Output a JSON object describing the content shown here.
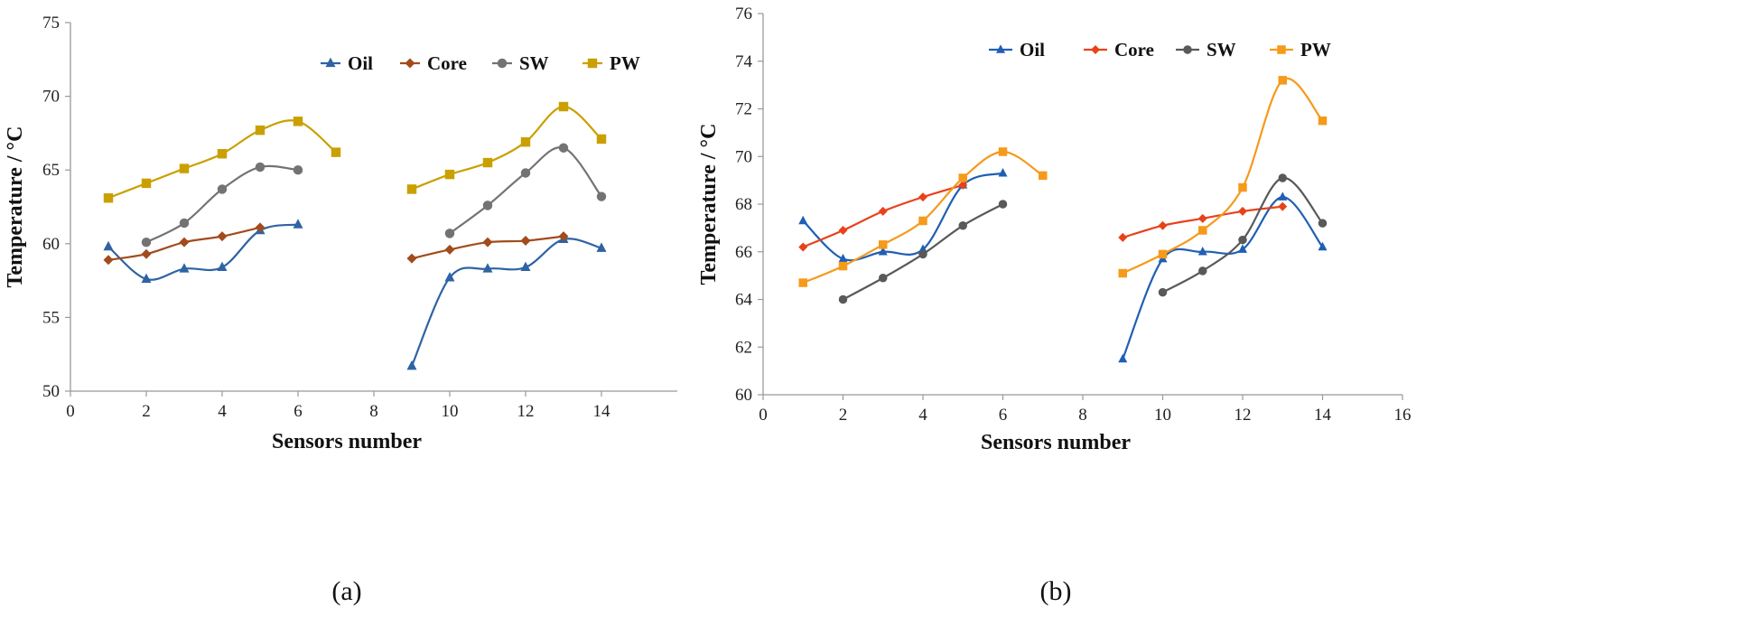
{
  "chart_data": [
    {
      "type": "line",
      "panel_label": "(a)",
      "xlabel": "Sensors number",
      "ylabel": "Temperature / °C",
      "xlim": [
        0,
        16
      ],
      "ylim": [
        50,
        75
      ],
      "xticks": [
        0,
        2,
        4,
        6,
        8,
        10,
        12,
        14
      ],
      "yticks": [
        50,
        55,
        60,
        65,
        70,
        75
      ],
      "grid": false,
      "legend_position": "top-right",
      "series": [
        {
          "name": "Oil",
          "color": "#2e63a4",
          "marker": "triangle",
          "segments": [
            [
              [
                1,
                59.8
              ],
              [
                2,
                57.6
              ],
              [
                3,
                58.3
              ],
              [
                4,
                58.4
              ],
              [
                5,
                60.9
              ],
              [
                6,
                61.3
              ]
            ],
            [
              [
                9,
                51.7
              ],
              [
                10,
                57.7
              ],
              [
                11,
                58.3
              ],
              [
                12,
                58.4
              ],
              [
                13,
                60.3
              ],
              [
                14,
                59.7
              ]
            ]
          ]
        },
        {
          "name": "Core",
          "color": "#a24b1c",
          "marker": "diamond",
          "segments": [
            [
              [
                1,
                58.9
              ],
              [
                2,
                59.3
              ],
              [
                3,
                60.1
              ],
              [
                4,
                60.5
              ],
              [
                5,
                61.1
              ]
            ],
            [
              [
                9,
                59.0
              ],
              [
                10,
                59.6
              ],
              [
                11,
                60.1
              ],
              [
                12,
                60.2
              ],
              [
                13,
                60.5
              ]
            ]
          ]
        },
        {
          "name": "SW",
          "color": "#737373",
          "marker": "circle",
          "segments": [
            [
              [
                2,
                60.1
              ],
              [
                3,
                61.4
              ],
              [
                4,
                63.7
              ],
              [
                5,
                65.2
              ],
              [
                6,
                65.0
              ]
            ],
            [
              [
                10,
                60.7
              ],
              [
                11,
                62.6
              ],
              [
                12,
                64.8
              ],
              [
                13,
                66.5
              ],
              [
                14,
                63.2
              ]
            ]
          ]
        },
        {
          "name": "PW",
          "color": "#c9a000",
          "marker": "square",
          "segments": [
            [
              [
                1,
                63.1
              ],
              [
                2,
                64.1
              ],
              [
                3,
                65.1
              ],
              [
                4,
                66.1
              ],
              [
                5,
                67.7
              ],
              [
                6,
                68.3
              ],
              [
                7,
                66.2
              ]
            ],
            [
              [
                9,
                63.7
              ],
              [
                10,
                64.7
              ],
              [
                11,
                65.5
              ],
              [
                12,
                66.9
              ],
              [
                13,
                69.3
              ],
              [
                14,
                67.1
              ]
            ]
          ]
        }
      ]
    },
    {
      "type": "line",
      "panel_label": "(b)",
      "xlabel": "Sensors number",
      "ylabel": "Temperature / °C",
      "xlim": [
        0,
        16
      ],
      "ylim": [
        60,
        76
      ],
      "xticks": [
        0,
        2,
        4,
        6,
        8,
        10,
        12,
        14,
        16
      ],
      "yticks": [
        60,
        62,
        64,
        66,
        68,
        70,
        72,
        74,
        76
      ],
      "grid": false,
      "legend_position": "top-right",
      "series": [
        {
          "name": "Oil",
          "color": "#1f5fb4",
          "marker": "triangle",
          "segments": [
            [
              [
                1,
                67.3
              ],
              [
                2,
                65.7
              ],
              [
                3,
                66.0
              ],
              [
                4,
                66.1
              ],
              [
                5,
                68.8
              ],
              [
                6,
                69.3
              ]
            ],
            [
              [
                9,
                61.5
              ],
              [
                10,
                65.7
              ],
              [
                11,
                66.0
              ],
              [
                12,
                66.1
              ],
              [
                13,
                68.3
              ],
              [
                14,
                66.2
              ]
            ]
          ]
        },
        {
          "name": "Core",
          "color": "#e8421a",
          "marker": "diamond",
          "segments": [
            [
              [
                1,
                66.2
              ],
              [
                2,
                66.9
              ],
              [
                3,
                67.7
              ],
              [
                4,
                68.3
              ],
              [
                5,
                68.8
              ]
            ],
            [
              [
                9,
                66.6
              ],
              [
                10,
                67.1
              ],
              [
                11,
                67.4
              ],
              [
                12,
                67.7
              ],
              [
                13,
                67.9
              ]
            ]
          ]
        },
        {
          "name": "SW",
          "color": "#595959",
          "marker": "circle",
          "segments": [
            [
              [
                2,
                64.0
              ],
              [
                3,
                64.9
              ],
              [
                4,
                65.9
              ],
              [
                5,
                67.1
              ],
              [
                6,
                68.0
              ]
            ],
            [
              [
                10,
                64.3
              ],
              [
                11,
                65.2
              ],
              [
                12,
                66.5
              ],
              [
                13,
                69.1
              ],
              [
                14,
                67.2
              ]
            ]
          ]
        },
        {
          "name": "PW",
          "color": "#f59a1b",
          "marker": "square",
          "segments": [
            [
              [
                1,
                64.7
              ],
              [
                2,
                65.4
              ],
              [
                3,
                66.3
              ],
              [
                4,
                67.3
              ],
              [
                5,
                69.1
              ],
              [
                6,
                70.2
              ],
              [
                7,
                69.2
              ]
            ],
            [
              [
                9,
                65.1
              ],
              [
                10,
                65.9
              ],
              [
                11,
                66.9
              ],
              [
                12,
                68.7
              ],
              [
                13,
                73.2
              ],
              [
                14,
                71.5
              ]
            ]
          ]
        }
      ]
    }
  ]
}
